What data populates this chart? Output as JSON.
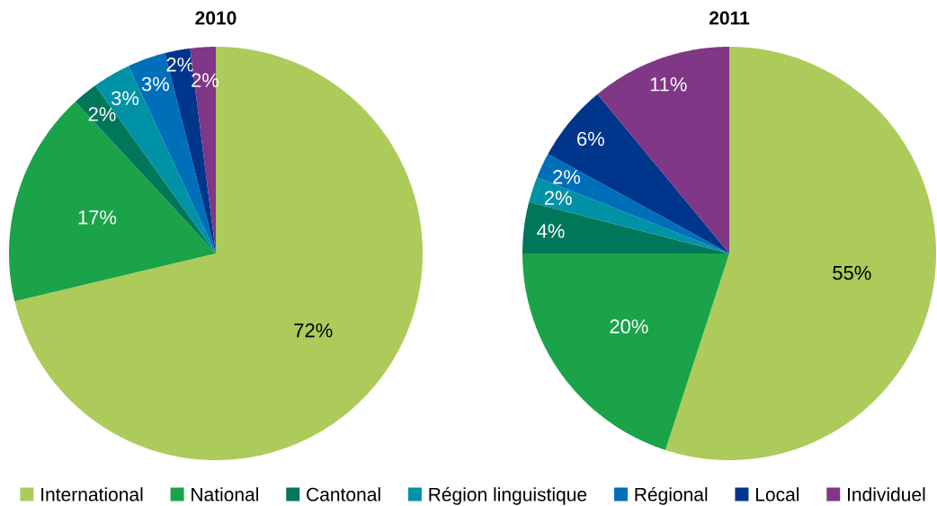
{
  "chart_data": {
    "type": "pie",
    "categories": [
      "International",
      "National",
      "Cantonal",
      "Région linguistique",
      "Régional",
      "Local",
      "Individuel"
    ],
    "colors": [
      "#adcb5a",
      "#1aa348",
      "#00775a",
      "#0092a5",
      "#006fb9",
      "#00358c",
      "#7f3786"
    ],
    "series": [
      {
        "name": "2010",
        "values": [
          72,
          17,
          2,
          3,
          3,
          2,
          2
        ],
        "value_labels": [
          "72%",
          "17%",
          "2%",
          "3%",
          "3%",
          "2%",
          "2%"
        ]
      },
      {
        "name": "2011",
        "values": [
          55,
          20,
          4,
          2,
          2,
          6,
          11
        ],
        "value_labels": [
          "55%",
          "20%",
          "4%",
          "2%",
          "2%",
          "6%",
          "11%"
        ]
      }
    ],
    "legend": "bottom"
  }
}
